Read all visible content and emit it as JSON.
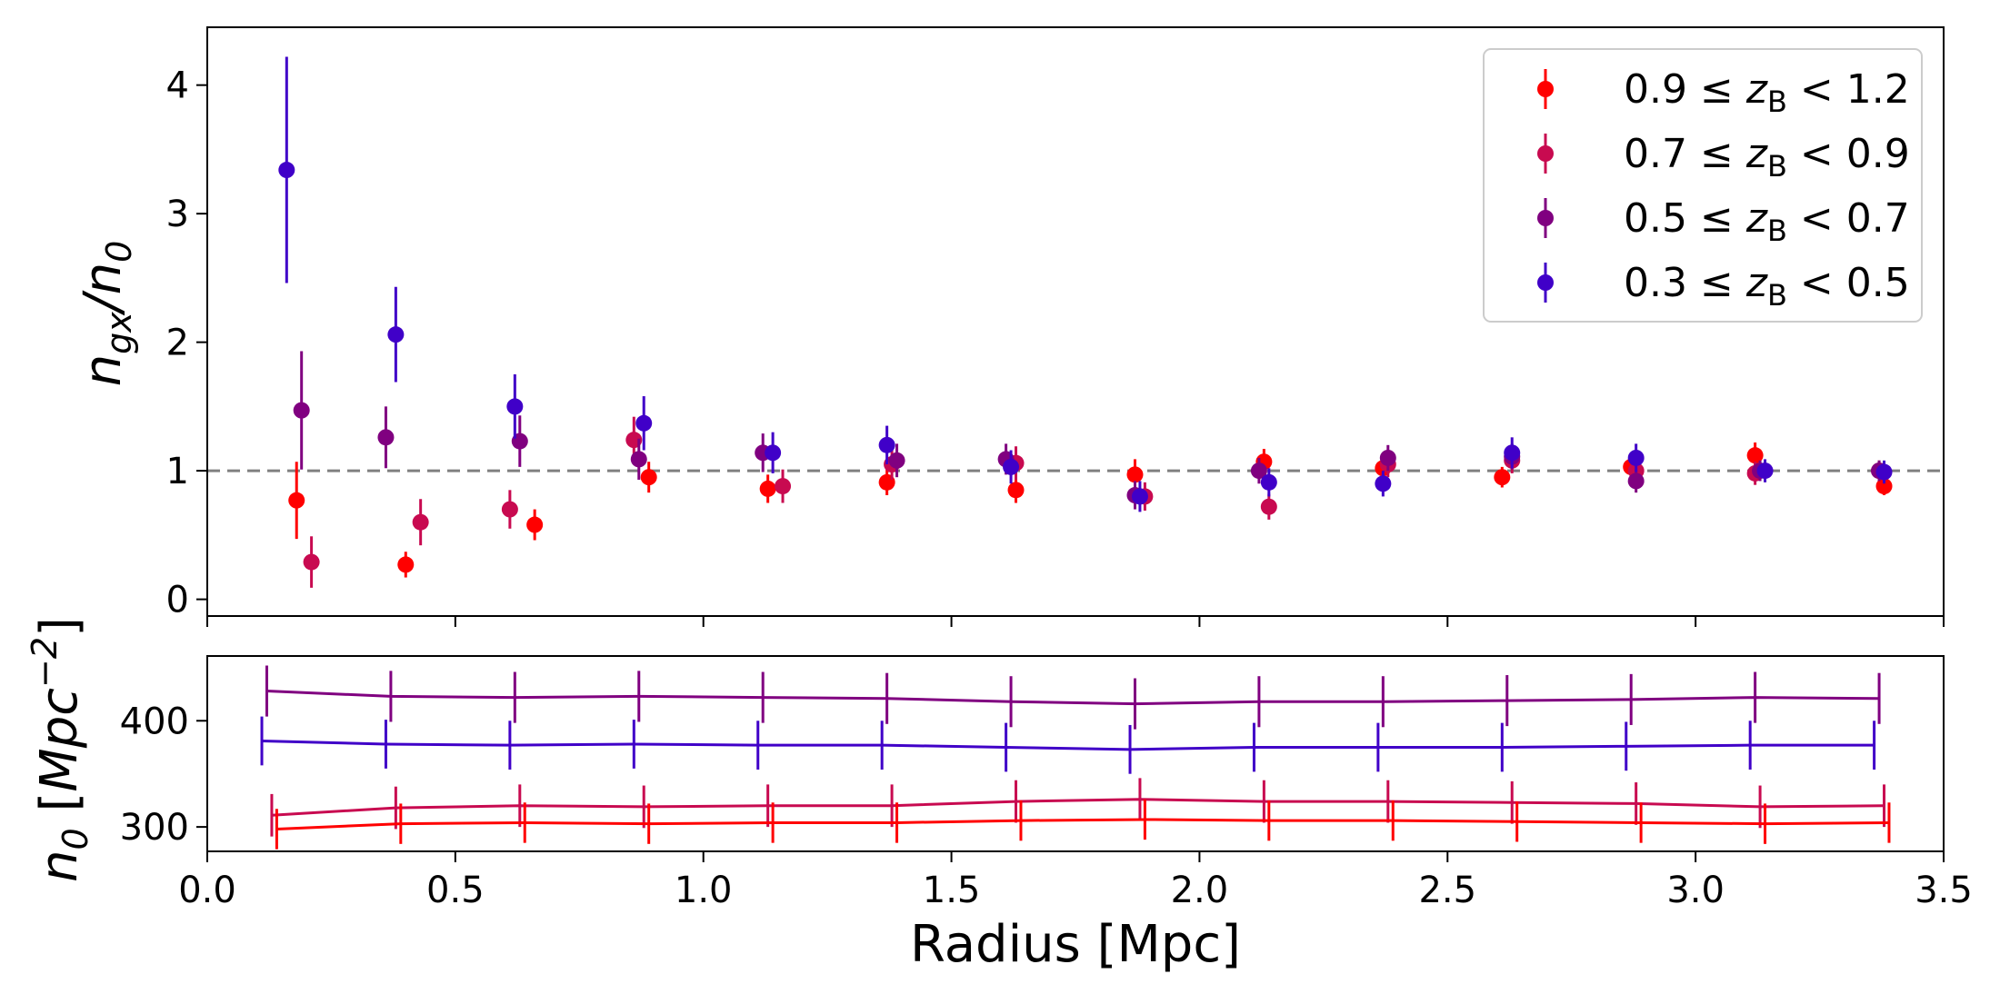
{
  "chart_data": [
    {
      "type": "scatter",
      "panel": "top",
      "ylabel": "n_gx/n_0",
      "ylim": [
        -0.13,
        4.45
      ],
      "xlim": [
        0.0,
        3.5
      ],
      "yticks": [
        0,
        1,
        2,
        3,
        4
      ],
      "reference_line": {
        "y": 1.0,
        "style": "dashed",
        "color": "#808080"
      },
      "legend": "top-right",
      "series": [
        {
          "name": "0.9 ≤ z_B < 1.2",
          "label_parts": {
            "pre": "0.9 ≤ ",
            "var": "z",
            "sub": "B",
            "post": " < 1.2"
          },
          "color": "#ff0000",
          "x": [
            0.18,
            0.4,
            0.66,
            0.89,
            1.13,
            1.37,
            1.63,
            1.87,
            2.13,
            2.37,
            2.61,
            2.87,
            3.12,
            3.38
          ],
          "y": [
            0.77,
            0.27,
            0.58,
            0.95,
            0.86,
            0.91,
            0.85,
            0.97,
            1.07,
            1.02,
            0.95,
            1.03,
            1.12,
            0.88
          ],
          "err": [
            0.3,
            0.1,
            0.12,
            0.12,
            0.11,
            0.1,
            0.1,
            0.12,
            0.1,
            0.08,
            0.08,
            0.08,
            0.1,
            0.07
          ]
        },
        {
          "name": "0.7 ≤ z_B < 0.9",
          "label_parts": {
            "pre": "0.7 ≤ ",
            "var": "z",
            "sub": "B",
            "post": " < 0.9"
          },
          "color": "#c80a50",
          "x": [
            0.21,
            0.43,
            0.61,
            0.86,
            1.16,
            1.38,
            1.63,
            1.89,
            2.14,
            2.38,
            2.63,
            2.88,
            3.12,
            3.37
          ],
          "y": [
            0.29,
            0.6,
            0.7,
            1.24,
            0.88,
            1.05,
            1.06,
            0.8,
            0.72,
            1.05,
            1.08,
            1.0,
            0.98,
            1.0
          ],
          "err": [
            0.2,
            0.18,
            0.15,
            0.18,
            0.13,
            0.12,
            0.13,
            0.11,
            0.1,
            0.1,
            0.1,
            0.09,
            0.09,
            0.08
          ]
        },
        {
          "name": "0.5 ≤ z_B < 0.7",
          "label_parts": {
            "pre": "0.5 ≤ ",
            "var": "z",
            "sub": "B",
            "post": " < 0.7"
          },
          "color": "#800080",
          "x": [
            0.19,
            0.36,
            0.63,
            0.87,
            1.12,
            1.39,
            1.61,
            1.87,
            2.12,
            2.38,
            2.63,
            2.88,
            3.13,
            3.37
          ],
          "y": [
            1.47,
            1.26,
            1.23,
            1.09,
            1.14,
            1.08,
            1.09,
            0.81,
            1.0,
            1.1,
            1.11,
            0.92,
            1.0,
            1.0
          ],
          "err": [
            0.46,
            0.24,
            0.2,
            0.16,
            0.15,
            0.13,
            0.12,
            0.11,
            0.1,
            0.1,
            0.1,
            0.09,
            0.08,
            0.08
          ]
        },
        {
          "name": "0.3 ≤ z_B < 0.5",
          "label_parts": {
            "pre": "0.3 ≤ ",
            "var": "z",
            "sub": "B",
            "post": " < 0.5"
          },
          "color": "#4000c8",
          "x": [
            0.16,
            0.38,
            0.62,
            0.88,
            1.14,
            1.37,
            1.62,
            1.88,
            2.14,
            2.37,
            2.63,
            2.88,
            3.14,
            3.38
          ],
          "y": [
            3.34,
            2.06,
            1.5,
            1.37,
            1.14,
            1.2,
            1.03,
            0.8,
            0.91,
            0.9,
            1.14,
            1.1,
            1.0,
            0.99
          ],
          "err": [
            0.88,
            0.37,
            0.25,
            0.21,
            0.16,
            0.15,
            0.13,
            0.12,
            0.11,
            0.1,
            0.12,
            0.11,
            0.09,
            0.09
          ]
        }
      ]
    },
    {
      "type": "line",
      "panel": "bottom",
      "xlabel": "Radius [Mpc]",
      "ylabel": "n_0 [Mpc^-2]",
      "xlim": [
        0.0,
        3.5
      ],
      "ylim": [
        277,
        461
      ],
      "xticks": [
        0.0,
        0.5,
        1.0,
        1.5,
        2.0,
        2.5,
        3.0,
        3.5
      ],
      "yticks": [
        300,
        400
      ],
      "series": [
        {
          "color": "#800080",
          "x": [
            0.12,
            0.37,
            0.62,
            0.87,
            1.12,
            1.37,
            1.62,
            1.87,
            2.12,
            2.37,
            2.62,
            2.87,
            3.12,
            3.37
          ],
          "y": [
            428,
            423,
            422,
            423,
            422,
            421,
            418,
            416,
            418,
            418,
            419,
            420,
            422,
            421
          ],
          "err": [
            24,
            24,
            24,
            24,
            24,
            24,
            24,
            24,
            24,
            24,
            24,
            24,
            24,
            24
          ]
        },
        {
          "color": "#4000c8",
          "x": [
            0.11,
            0.36,
            0.61,
            0.86,
            1.11,
            1.36,
            1.61,
            1.86,
            2.11,
            2.36,
            2.61,
            2.86,
            3.11,
            3.36
          ],
          "y": [
            381,
            378,
            377,
            378,
            377,
            377,
            375,
            373,
            375,
            375,
            375,
            376,
            377,
            377
          ],
          "err": [
            23,
            23,
            23,
            23,
            23,
            23,
            23,
            23,
            23,
            23,
            23,
            23,
            23,
            23
          ]
        },
        {
          "color": "#c80a50",
          "x": [
            0.13,
            0.38,
            0.63,
            0.88,
            1.13,
            1.38,
            1.63,
            1.88,
            2.13,
            2.38,
            2.63,
            2.88,
            3.13,
            3.38
          ],
          "y": [
            311,
            318,
            320,
            319,
            320,
            320,
            324,
            326,
            324,
            324,
            323,
            322,
            319,
            320
          ],
          "err": [
            20,
            20,
            20,
            20,
            20,
            20,
            20,
            20,
            20,
            20,
            20,
            20,
            20,
            20
          ]
        },
        {
          "color": "#ff0000",
          "x": [
            0.14,
            0.39,
            0.64,
            0.89,
            1.14,
            1.39,
            1.64,
            1.89,
            2.14,
            2.39,
            2.64,
            2.89,
            3.14,
            3.39
          ],
          "y": [
            298,
            303,
            304,
            303,
            304,
            304,
            306,
            307,
            306,
            306,
            305,
            304,
            303,
            304
          ],
          "err": [
            19,
            19,
            19,
            19,
            19,
            19,
            19,
            19,
            19,
            19,
            19,
            19,
            19,
            19
          ]
        }
      ]
    }
  ],
  "labels": {
    "top_ylabel": {
      "main": "n",
      "sub1": "gx",
      "mid": "/n",
      "sub2": "0"
    },
    "bottom_ylabel": {
      "main": "n",
      "sub": "0",
      "open": " [",
      "unit": "Mpc",
      "sup": "−2",
      "close": "]"
    },
    "xlabel": "Radius [Mpc]"
  }
}
